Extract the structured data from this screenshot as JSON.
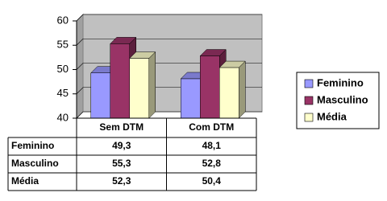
{
  "chart_data": {
    "type": "bar3d",
    "categories": [
      "Sem DTM",
      "Com DTM"
    ],
    "series": [
      {
        "name": "Feminino",
        "color": "#9999ff",
        "values": [
          49.3,
          48.1
        ],
        "value_labels": [
          "49,3",
          "48,1"
        ]
      },
      {
        "name": "Masculino",
        "color": "#993366",
        "values": [
          55.3,
          52.8
        ],
        "value_labels": [
          "55,3",
          "52,8"
        ]
      },
      {
        "name": "Média",
        "color": "#ffffcc",
        "values": [
          52.3,
          50.4
        ],
        "value_labels": [
          "52,3",
          "50,4"
        ]
      }
    ],
    "ylim": [
      40,
      60
    ],
    "yticks": [
      40,
      45,
      50,
      55,
      60
    ],
    "grid": true,
    "legend": "right"
  }
}
